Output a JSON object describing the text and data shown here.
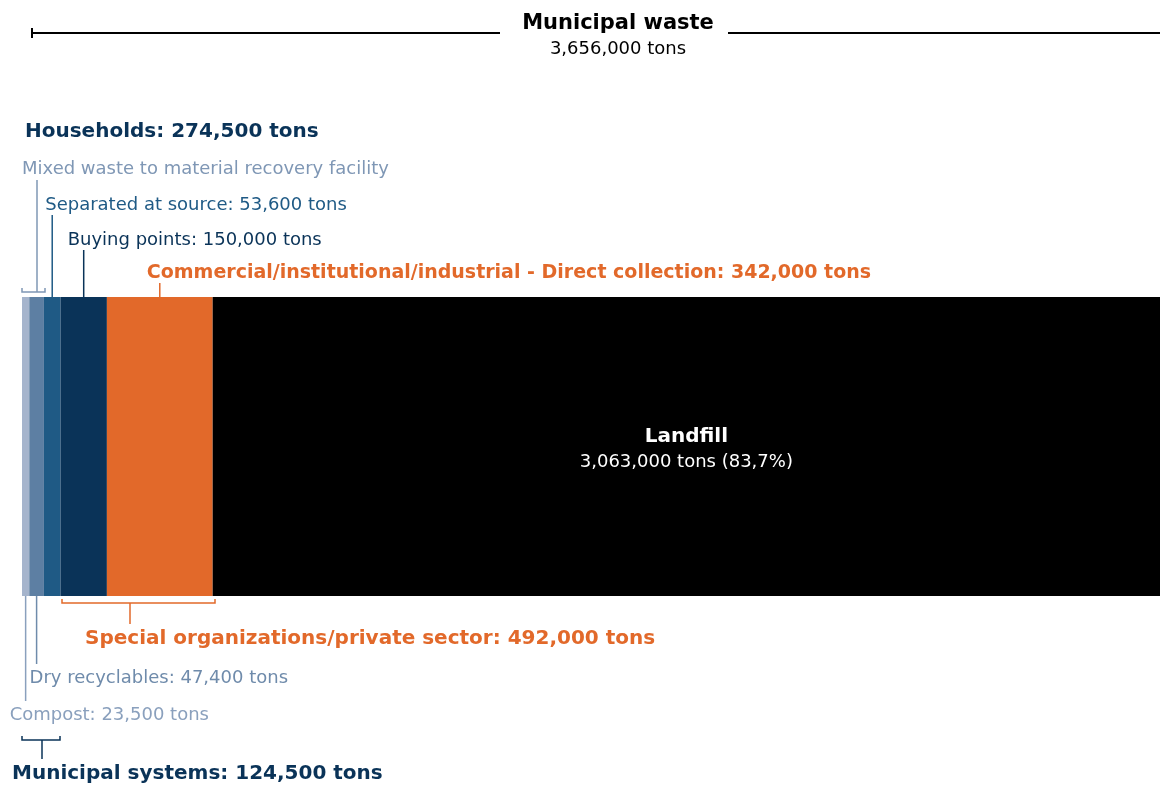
{
  "chart_data": {
    "type": "bar",
    "orientation": "horizontal",
    "stacked": true,
    "title": "Municipal waste",
    "subtitle": "3,656,000 tons",
    "categories": [
      null
    ],
    "legend": false,
    "series": [
      {
        "color": "#a5b4cc",
        "values": [
          23500
        ],
        "value_labels": [
          "Compost: 23,500 tons"
        ]
      },
      {
        "color": "#5d7fa3",
        "values": [
          47400
        ],
        "value_labels": [
          "Dry recyclables: 47,400 tons"
        ]
      },
      {
        "color": "#1f5a85",
        "values": [
          53600
        ],
        "value_labels": [
          "Separated at source: 53,600 tons"
        ]
      },
      {
        "color": "#0a3358",
        "values": [
          150000
        ],
        "value_labels": [
          "Buying points: 150,000 tons"
        ]
      },
      {
        "color": "#e2692a",
        "values": [
          342000
        ],
        "value_labels": [
          "Commercial/institutional/industrial - Direct collection: 342,000 tons"
        ]
      },
      {
        "name": "Landfill",
        "color": "#000000",
        "values": [
          3063000
        ],
        "value_labels": [
          "3,063,000 tons (83,7%)"
        ]
      }
    ],
    "annotations": [
      "Households: 274,500 tons",
      "Mixed waste to material recovery facility",
      "Special organizations/private sector: 492,000 tons",
      "Municipal systems: 124,500 tons"
    ]
  }
}
